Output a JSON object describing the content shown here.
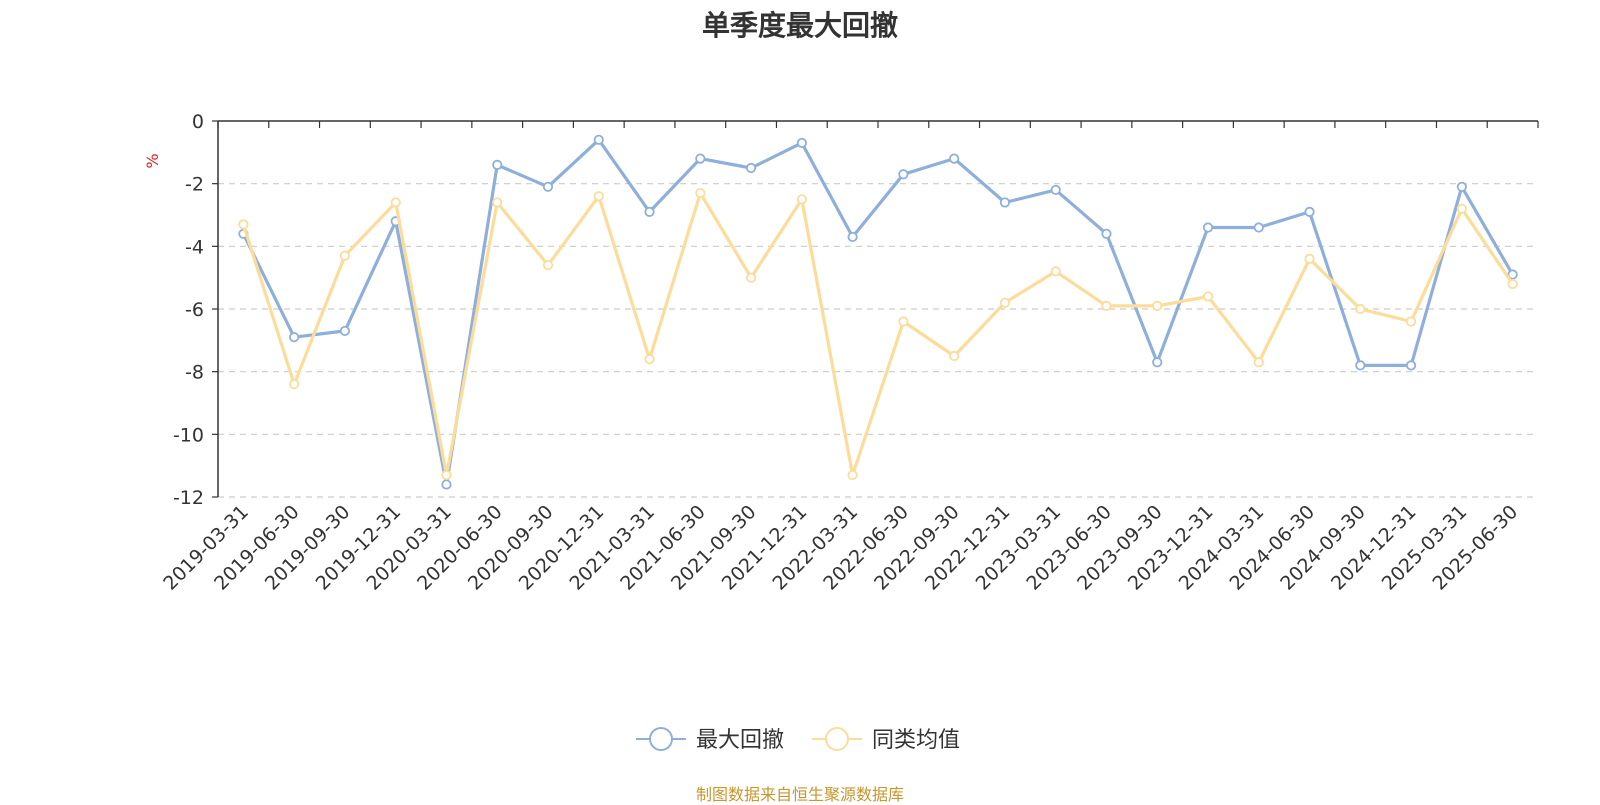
{
  "chart_data": {
    "type": "line",
    "title": "单季度最大回撤",
    "ylabel": "%",
    "xlabel": "",
    "ylim": [
      -12,
      0
    ],
    "yticks": [
      0,
      -2,
      -4,
      -6,
      -8,
      -10,
      -12
    ],
    "grid": true,
    "legend_position": "bottom-center",
    "categories": [
      "2019-03-31",
      "2019-06-30",
      "2019-09-30",
      "2019-12-31",
      "2020-03-31",
      "2020-06-30",
      "2020-09-30",
      "2020-12-31",
      "2021-03-31",
      "2021-06-30",
      "2021-09-30",
      "2021-12-31",
      "2022-03-31",
      "2022-06-30",
      "2022-09-30",
      "2022-12-31",
      "2023-03-31",
      "2023-06-30",
      "2023-09-30",
      "2023-12-31",
      "2024-03-31",
      "2024-06-30",
      "2024-09-30",
      "2024-12-31",
      "2025-03-31",
      "2025-06-30"
    ],
    "series": [
      {
        "name": "最大回撤",
        "color": "#8eafdc",
        "values": [
          -3.6,
          -6.9,
          -6.7,
          -3.2,
          -11.6,
          -1.4,
          -2.1,
          -0.6,
          -2.9,
          -1.2,
          -1.5,
          -0.7,
          -3.7,
          -1.7,
          -1.2,
          -2.6,
          -2.2,
          -3.6,
          -7.7,
          -3.4,
          -3.4,
          -2.9,
          -7.8,
          -7.8,
          -2.1,
          -4.9
        ]
      },
      {
        "name": "同类均值",
        "color": "#fddc9a",
        "values": [
          -3.3,
          -8.4,
          -4.3,
          -2.6,
          -11.3,
          -2.6,
          -4.6,
          -2.4,
          -7.6,
          -2.3,
          -5.0,
          -2.5,
          -11.3,
          -6.4,
          -7.5,
          -5.8,
          -4.8,
          -5.9,
          -5.9,
          -5.6,
          -7.7,
          -4.4,
          -6.0,
          -6.4,
          -2.8,
          -5.2
        ]
      }
    ]
  },
  "source_note": "制图数据来自恒生聚源数据库"
}
